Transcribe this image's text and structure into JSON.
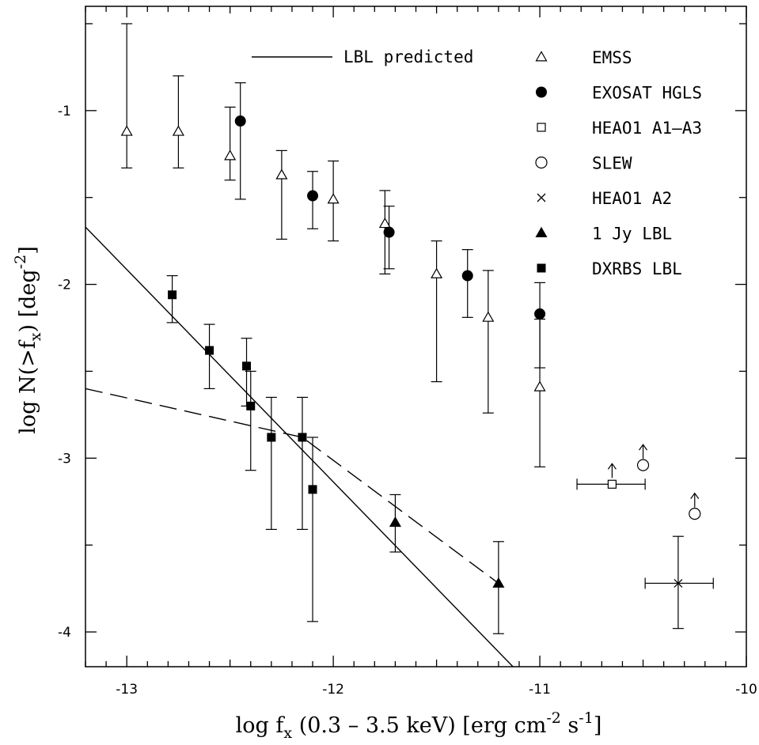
{
  "chart_data": {
    "type": "scatter",
    "xlim": [
      -13.2,
      -10
    ],
    "ylim": [
      -4.2,
      -0.4
    ],
    "x_ticks": [
      -13,
      -12,
      -11,
      -10
    ],
    "x_tick_labels": [
      "-13",
      "-12",
      "-11",
      "-10"
    ],
    "y_ticks": [
      -1,
      -2,
      -3,
      -4
    ],
    "y_tick_labels": [
      "-1",
      "-2",
      "-3",
      "-4"
    ],
    "xlabel": {
      "prefix": "log f",
      "sub": "x",
      "mid": " (0.3 – 3.5 keV) [erg cm",
      "sup1": "-2",
      "mid2": " s",
      "sup2": "-1",
      "suffix": "]"
    },
    "ylabel": {
      "prefix": "log N(>f",
      "sub": "x",
      "mid": ") [deg",
      "sup": "-2",
      "suffix": "]"
    },
    "grid": false,
    "legend_position": "top-right",
    "lines": [
      {
        "name": "LBL predicted",
        "style": "solid",
        "points": [
          [
            -13.2,
            -1.67
          ],
          [
            -11.13,
            -4.2
          ]
        ]
      },
      {
        "name": "",
        "style": "dashed",
        "points": [
          [
            -13.2,
            -2.6
          ],
          [
            -12.15,
            -2.88
          ],
          [
            -11.2,
            -3.72
          ]
        ]
      }
    ],
    "series": [
      {
        "name": "EMSS",
        "marker": "triangle-open",
        "points": [
          {
            "x": -13.0,
            "y": -1.12,
            "ylo": -1.33,
            "yhi": -0.5
          },
          {
            "x": -12.75,
            "y": -1.12,
            "ylo": -1.33,
            "yhi": -0.8
          },
          {
            "x": -12.5,
            "y": -1.26,
            "ylo": -1.4,
            "yhi": -0.98
          },
          {
            "x": -12.25,
            "y": -1.37,
            "ylo": -1.74,
            "yhi": -1.23
          },
          {
            "x": -12.0,
            "y": -1.51,
            "ylo": -1.75,
            "yhi": -1.29
          },
          {
            "x": -11.75,
            "y": -1.65,
            "ylo": -1.94,
            "yhi": -1.46
          },
          {
            "x": -11.5,
            "y": -1.94,
            "ylo": -2.56,
            "yhi": -1.75
          },
          {
            "x": -11.25,
            "y": -2.19,
            "ylo": -2.74,
            "yhi": -1.92
          },
          {
            "x": -11.0,
            "y": -2.59,
            "ylo": -3.05,
            "yhi": -2.2
          }
        ]
      },
      {
        "name": "EXOSAT HGLS",
        "marker": "circle-filled",
        "points": [
          {
            "x": -12.45,
            "y": -1.06,
            "ylo": -1.51,
            "yhi": -0.84
          },
          {
            "x": -12.1,
            "y": -1.49,
            "ylo": -1.68,
            "yhi": -1.35
          },
          {
            "x": -11.73,
            "y": -1.7,
            "ylo": -1.91,
            "yhi": -1.55
          },
          {
            "x": -11.35,
            "y": -1.95,
            "ylo": -2.19,
            "yhi": -1.8
          },
          {
            "x": -11.0,
            "y": -2.17,
            "ylo": -2.48,
            "yhi": -1.99
          }
        ]
      },
      {
        "name": "HEAO1 A1–A3",
        "marker": "square-open",
        "points": [
          {
            "x": -10.65,
            "y": -3.15,
            "xlo": -10.82,
            "xhi": -10.49,
            "lower_limit": true
          }
        ]
      },
      {
        "name": "SLEW",
        "marker": "circle-open",
        "points": [
          {
            "x": -10.5,
            "y": -3.04,
            "lower_limit": true
          },
          {
            "x": -10.25,
            "y": -3.32,
            "lower_limit": true
          }
        ]
      },
      {
        "name": "HEAO1 A2",
        "marker": "cross",
        "points": [
          {
            "x": -10.33,
            "y": -3.72,
            "ylo": -3.98,
            "yhi": -3.45,
            "xlo": -10.49,
            "xhi": -10.16
          }
        ]
      },
      {
        "name": "1 Jy LBL",
        "marker": "triangle-filled",
        "points": [
          {
            "x": -11.7,
            "y": -3.37,
            "ylo": -3.54,
            "yhi": -3.21
          },
          {
            "x": -11.2,
            "y": -3.72,
            "ylo": -4.01,
            "yhi": -3.48
          }
        ]
      },
      {
        "name": "DXRBS LBL",
        "marker": "square-filled",
        "points": [
          {
            "x": -12.78,
            "y": -2.06,
            "ylo": -2.22,
            "yhi": -1.95
          },
          {
            "x": -12.6,
            "y": -2.38,
            "ylo": -2.6,
            "yhi": -2.23
          },
          {
            "x": -12.42,
            "y": -2.47,
            "ylo": -2.7,
            "yhi": -2.31
          },
          {
            "x": -12.4,
            "y": -2.7,
            "ylo": -3.07,
            "yhi": -2.5
          },
          {
            "x": -12.3,
            "y": -2.88,
            "ylo": -3.41,
            "yhi": -2.65
          },
          {
            "x": -12.15,
            "y": -2.88,
            "ylo": -3.41,
            "yhi": -2.65
          },
          {
            "x": -12.1,
            "y": -3.18,
            "ylo": -3.94,
            "yhi": -2.88
          }
        ]
      }
    ]
  }
}
